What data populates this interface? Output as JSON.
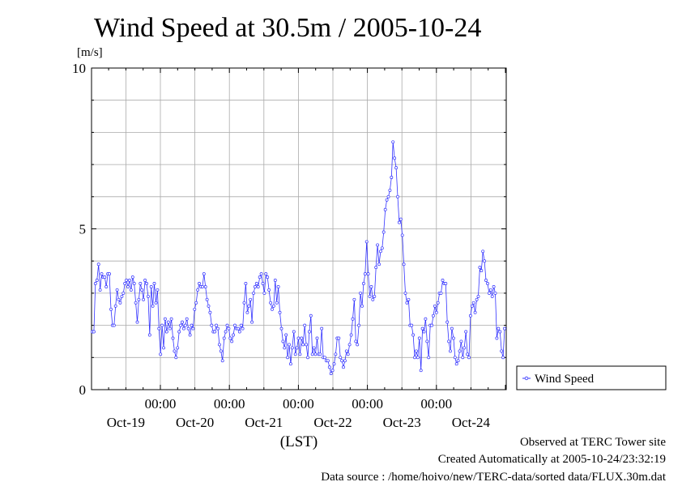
{
  "chart_data": {
    "type": "line",
    "title": "Wind Speed at 30.5m / 2005-10-24",
    "ylabel": "[m/s]",
    "xlabel": "(LST)",
    "ylim": [
      0,
      10
    ],
    "y_ticks": [
      "0",
      "5",
      "10"
    ],
    "x_tick_labels": [
      {
        "time": "00:00",
        "date": "Oct-19"
      },
      {
        "time": "00:00",
        "date": "Oct-20"
      },
      {
        "time": "00:00",
        "date": "Oct-21"
      },
      {
        "time": "00:00",
        "date": "Oct-22"
      },
      {
        "time": "00:00",
        "date": "Oct-23"
      },
      {
        "time": "00:00",
        "date": "Oct-24"
      }
    ],
    "grid": true,
    "legend_position": "right",
    "series": [
      {
        "name": "Wind Speed",
        "color": "#3333ff",
        "x_range_days": [
          "Oct-18 05:00",
          "Oct-24 23:30"
        ],
        "values": [
          1.8,
          1.8,
          3.3,
          3.4,
          3.9,
          3.1,
          3.6,
          3.5,
          3.5,
          3.2,
          3.6,
          3.6,
          2.5,
          2.0,
          2.0,
          2.6,
          3.1,
          2.8,
          2.7,
          2.9,
          3.0,
          3.3,
          3.4,
          3.2,
          3.4,
          3.1,
          3.5,
          3.3,
          2.7,
          2.1,
          2.8,
          3.3,
          3.1,
          2.8,
          3.4,
          3.3,
          2.9,
          1.7,
          3.2,
          2.6,
          3.3,
          2.7,
          3.1,
          1.9,
          1.1,
          2.0,
          1.3,
          2.2,
          1.8,
          2.1,
          1.9,
          2.2,
          1.6,
          1.2,
          1.0,
          1.3,
          1.8,
          2.0,
          2.1,
          1.9,
          2.0,
          2.2,
          1.9,
          1.7,
          2.0,
          1.9,
          2.5,
          2.7,
          3.1,
          3.3,
          3.2,
          3.2,
          3.6,
          3.2,
          2.8,
          2.6,
          2.4,
          2.0,
          1.8,
          1.8,
          2.0,
          1.9,
          1.4,
          1.2,
          0.9,
          1.6,
          1.8,
          2.0,
          1.9,
          1.6,
          1.5,
          1.7,
          2.0,
          1.9,
          1.9,
          1.8,
          2.0,
          1.9,
          2.7,
          3.3,
          2.4,
          2.6,
          2.8,
          2.1,
          3.0,
          3.2,
          3.3,
          3.2,
          3.5,
          3.6,
          3.3,
          3.0,
          3.6,
          3.5,
          3.1,
          2.7,
          2.5,
          2.6,
          3.4,
          2.7,
          3.2,
          2.4,
          1.9,
          1.5,
          1.3,
          1.7,
          1.0,
          1.4,
          0.8,
          1.3,
          1.8,
          1.1,
          1.3,
          1.6,
          1.1,
          1.6,
          1.4,
          2.0,
          1.4,
          1.0,
          1.8,
          2.3,
          1.1,
          1.3,
          1.1,
          1.6,
          1.1,
          1.1,
          1.9,
          1.0,
          1.0,
          0.9,
          0.9,
          0.7,
          0.5,
          0.6,
          0.8,
          1.1,
          1.6,
          1.6,
          1.0,
          0.9,
          0.7,
          0.9,
          1.2,
          1.1,
          1.4,
          1.7,
          2.2,
          2.8,
          1.5,
          1.4,
          2.0,
          3.0,
          2.6,
          3.3,
          3.6,
          4.6,
          3.6,
          2.9,
          3.2,
          2.8,
          2.9,
          3.8,
          4.5,
          3.9,
          4.3,
          4.4,
          4.9,
          5.6,
          5.9,
          6.0,
          6.2,
          6.6,
          7.7,
          7.2,
          6.9,
          6.0,
          5.2,
          5.3,
          4.8,
          3.9,
          3.0,
          2.7,
          2.8,
          2.0,
          2.0,
          1.7,
          1.0,
          1.2,
          1.0,
          1.6,
          0.6,
          1.9,
          1.8,
          2.2,
          1.5,
          1.0,
          2.0,
          2.0,
          2.3,
          2.6,
          2.4,
          2.7,
          3.0,
          3.0,
          3.4,
          3.3,
          3.3,
          2.1,
          1.5,
          1.2,
          1.9,
          1.6,
          1.0,
          0.8,
          0.9,
          1.2,
          1.5,
          1.0,
          1.3,
          1.8,
          1.1,
          1.0,
          2.3,
          2.6,
          2.7,
          2.4,
          2.8,
          2.9,
          3.8,
          3.7,
          4.3,
          4.0,
          3.4,
          3.3,
          3.0,
          3.1,
          2.9,
          3.2,
          3.0,
          1.6,
          1.9,
          1.8,
          1.2,
          1.0,
          1.9
        ]
      }
    ]
  },
  "footer": {
    "line1": "Observed at TERC Tower site",
    "line2": "Created Automatically at 2005-10-24/23:32:19",
    "line3": "Data source : /home/hoivo/new/TERC-data/sorted  data/FLUX.30m.dat"
  }
}
